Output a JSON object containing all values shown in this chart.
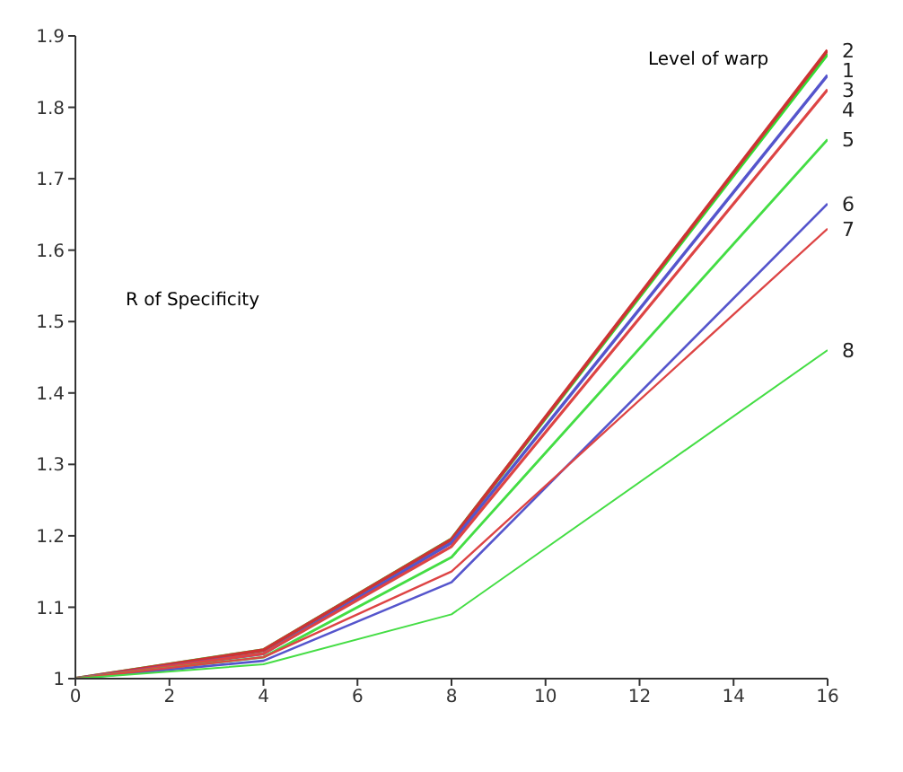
{
  "chart_data": {
    "type": "line",
    "x": [
      0,
      4,
      8,
      16
    ],
    "series": [
      {
        "name": "1",
        "color": "#33dd33",
        "values": [
          1,
          1.04,
          1.195,
          1.875
        ]
      },
      {
        "name": "2",
        "color": "#cc3333",
        "values": [
          1,
          1.04,
          1.195,
          1.88
        ]
      },
      {
        "name": "3",
        "color": "#5555cc",
        "values": [
          1,
          1.035,
          1.19,
          1.845
        ]
      },
      {
        "name": "4",
        "color": "#dd4444",
        "values": [
          1,
          1.035,
          1.185,
          1.825
        ]
      },
      {
        "name": "5",
        "color": "#44dd44",
        "values": [
          1,
          1.03,
          1.17,
          1.755
        ]
      },
      {
        "name": "6",
        "color": "#5555cc",
        "values": [
          1,
          1.025,
          1.135,
          1.665
        ]
      },
      {
        "name": "7",
        "color": "#dd4444",
        "values": [
          1,
          1.03,
          1.15,
          1.63
        ]
      },
      {
        "name": "8",
        "color": "#44dd44",
        "values": [
          1,
          1.02,
          1.09,
          1.46
        ]
      }
    ],
    "xlim": [
      0,
      16
    ],
    "xticks": [
      0,
      2,
      4,
      6,
      8,
      10,
      12,
      14,
      16
    ],
    "ylim": [
      1,
      1.9
    ],
    "yticks": [
      1,
      1.1,
      1.2,
      1.3,
      1.4,
      1.5,
      1.6,
      1.7,
      1.8,
      1.9
    ],
    "annotations": [
      "Level of warp",
      "R of Specificity"
    ]
  }
}
